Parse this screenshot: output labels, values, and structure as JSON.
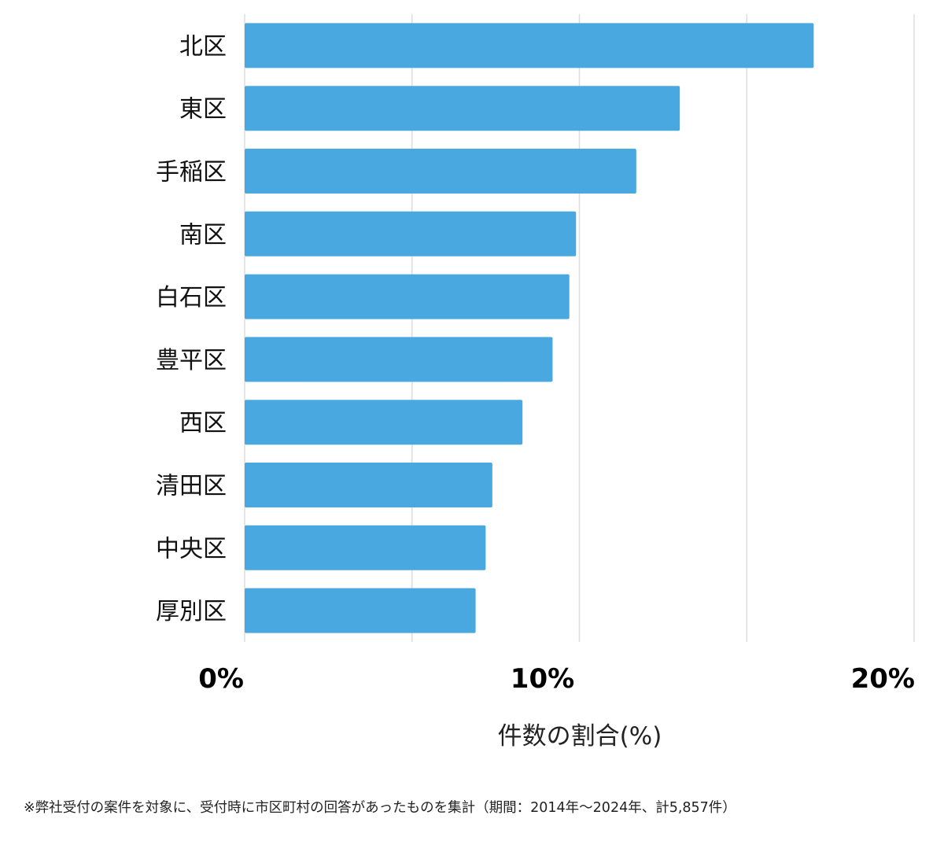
{
  "chart_data": {
    "type": "bar",
    "orientation": "horizontal",
    "categories": [
      "北区",
      "東区",
      "手稲区",
      "南区",
      "白石区",
      "豊平区",
      "西区",
      "清田区",
      "中央区",
      "厚別区"
    ],
    "values": [
      17.0,
      13.0,
      11.7,
      9.9,
      9.7,
      9.2,
      8.3,
      7.4,
      7.2,
      6.9
    ],
    "xlabel": "件数の割合(%)",
    "xlim": [
      0,
      20
    ],
    "x_ticks": [
      {
        "value": 0,
        "label": "0%"
      },
      {
        "value": 10,
        "label": "10%"
      },
      {
        "value": 20,
        "label": "20%"
      }
    ],
    "grid": true,
    "bar_color": "#4aa8e0",
    "grid_color": "#dddddd"
  },
  "footnote": "※弊社受付の案件を対象に、受付時に市区町村の回答があったものを集計（期間：2014年〜2024年、計5,857件）"
}
